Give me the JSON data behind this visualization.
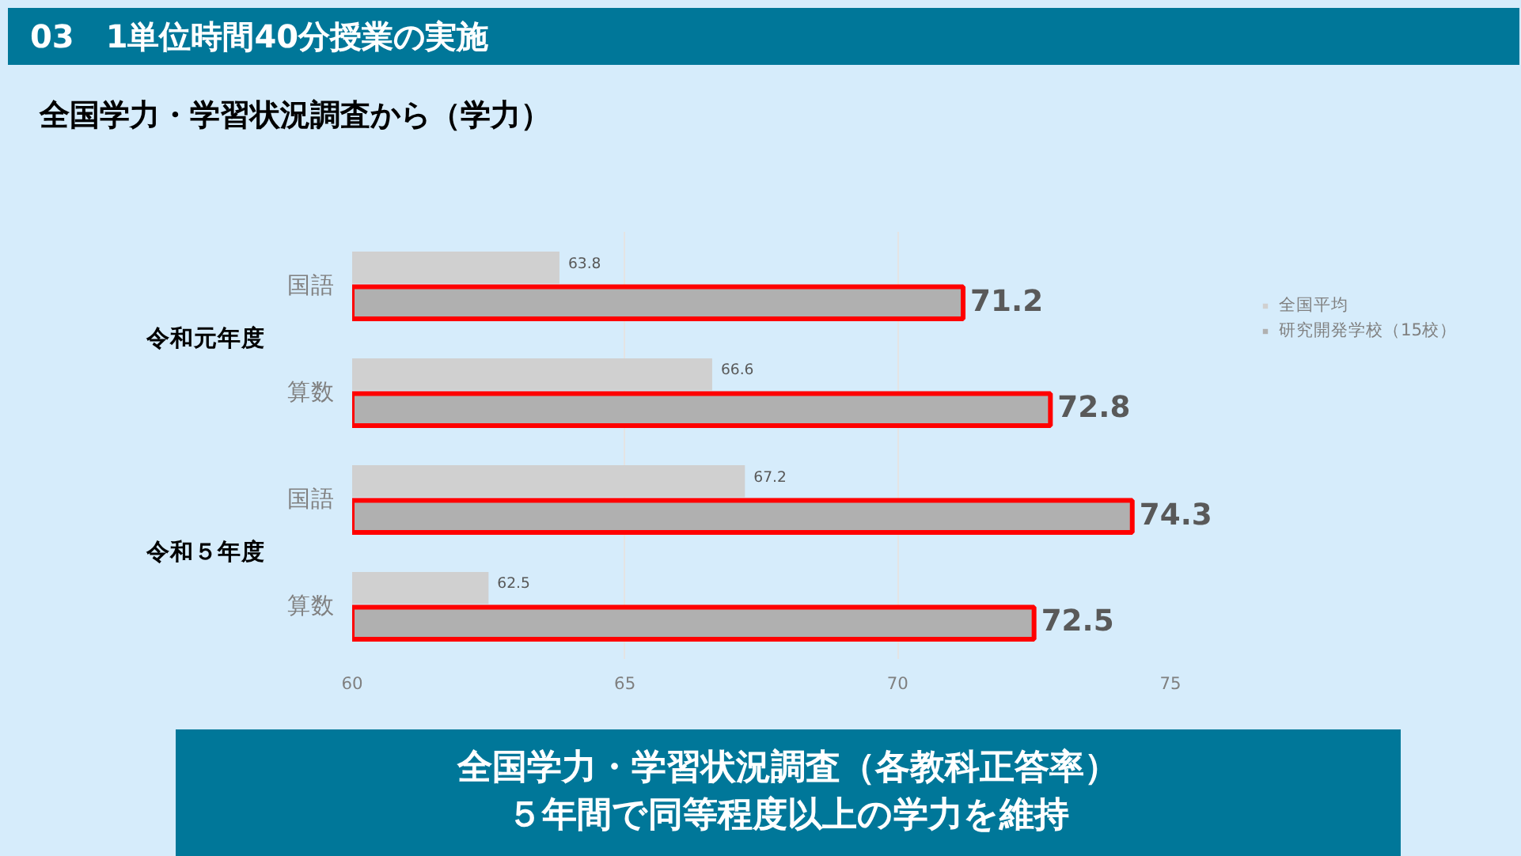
{
  "chart_data": {
    "type": "bar",
    "orientation": "horizontal",
    "title": "03　1単位時間40分授業の実施",
    "subtitle": "全国学力・学習状況調査から（学力）",
    "categories": [
      "国語",
      "算数",
      "国語",
      "算数"
    ],
    "series": [
      {
        "name": "全国平均",
        "color": "#d0d0d0",
        "values": [
          63.8,
          66.6,
          67.2,
          62.5
        ]
      },
      {
        "name": "研究開発学校（15校）",
        "color": "#b0b0b0",
        "values": [
          71.2,
          72.8,
          74.3,
          72.5
        ]
      }
    ],
    "xlim": [
      60,
      75
    ],
    "xticks": [
      60,
      65,
      70,
      75
    ],
    "grid": "x",
    "legend": "right",
    "data_labels": true,
    "annotations": [
      "令和元年度",
      "令和５年度",
      "全国学力・学習状況調査（各教科正答率）",
      "５年間で同等程度以上の学力を維持"
    ]
  }
}
